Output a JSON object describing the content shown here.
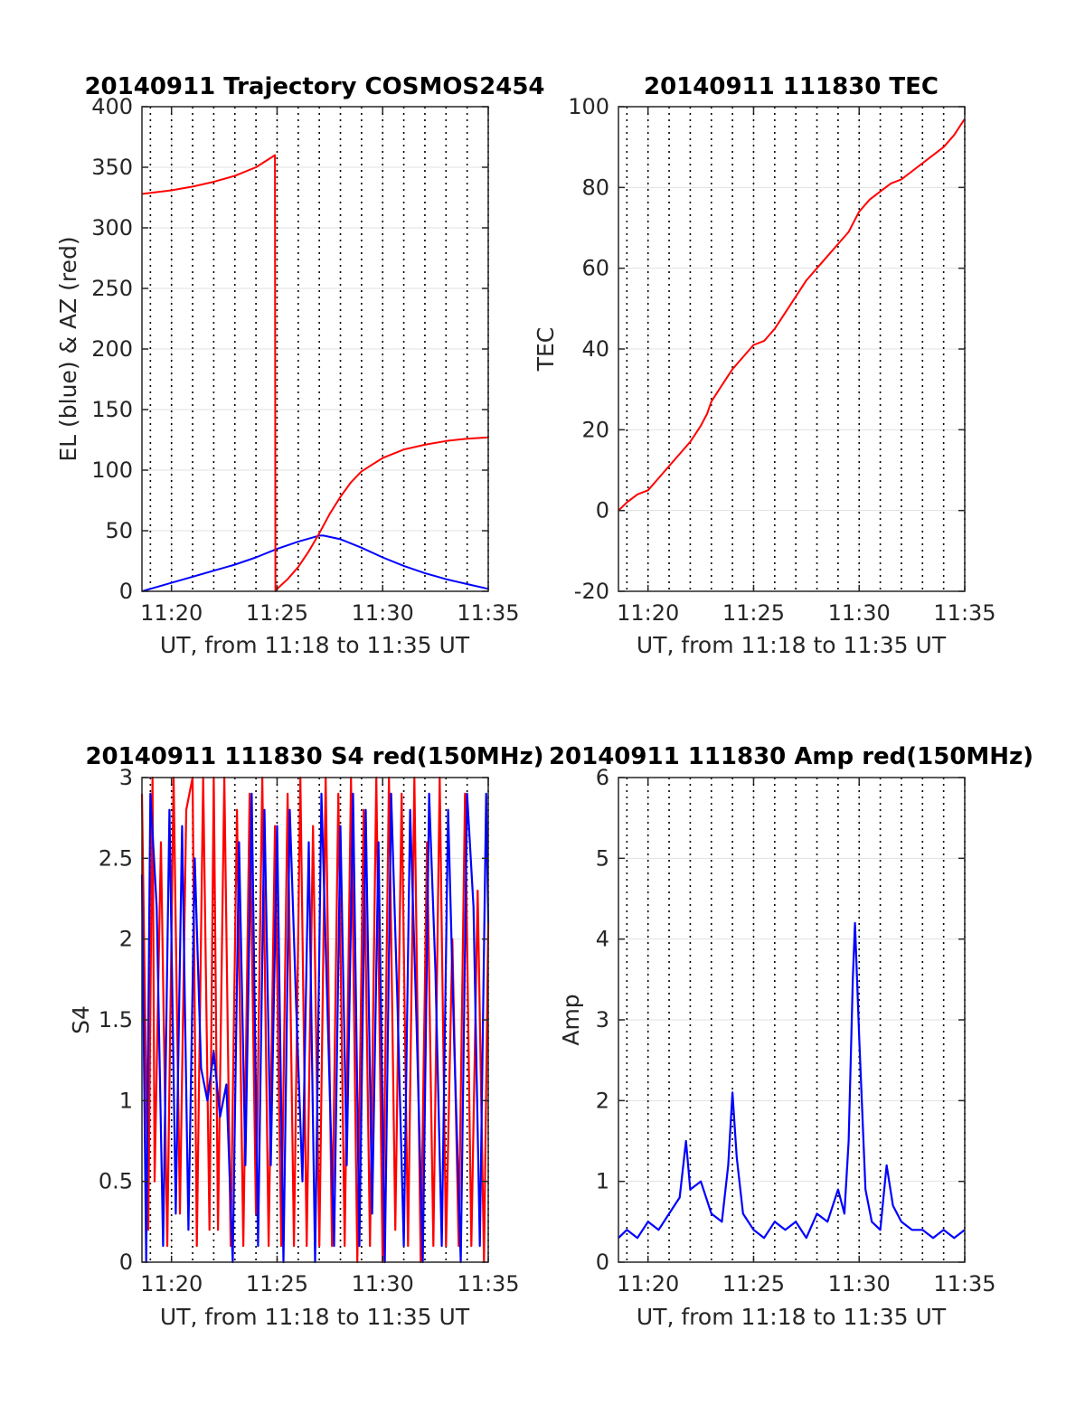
{
  "chart_data": [
    {
      "type": "line",
      "title": "20140911 Trajectory COSMOS2454",
      "xlabel": "UT, from 11:18 to 11:35 UT",
      "ylabel": "EL (blue) & AZ (red)",
      "xlim": [
        18.6,
        35.0
      ],
      "ylim": [
        0,
        400
      ],
      "xticks": [
        20,
        25,
        30,
        35
      ],
      "xtick_labels": [
        "11:20",
        "11:25",
        "11:30",
        "11:35"
      ],
      "yticks": [
        0,
        50,
        100,
        150,
        200,
        250,
        300,
        350,
        400
      ],
      "ytick_labels": [
        "0",
        "50",
        "100",
        "150",
        "200",
        "250",
        "300",
        "350",
        "400"
      ],
      "grid": true,
      "series": [
        {
          "color": "#0000ff",
          "x": [
            18.6,
            19.0,
            20.0,
            21.0,
            22.0,
            23.0,
            24.0,
            25.0,
            26.0,
            27.0,
            27.2,
            28.0,
            29.0,
            30.0,
            31.0,
            32.0,
            33.0,
            34.0,
            35.0
          ],
          "y": [
            0,
            2,
            7,
            12,
            17,
            22,
            28,
            35,
            41,
            46,
            46,
            43,
            36,
            28,
            21,
            15,
            10,
            6,
            2
          ]
        },
        {
          "color": "#ff0000",
          "x": [
            18.6,
            20.0,
            21.0,
            22.0,
            23.0,
            24.0,
            24.9,
            24.92,
            25.0,
            25.5,
            26.0,
            26.5,
            27.0,
            27.5,
            28.0,
            28.5,
            29.0,
            30.0,
            31.0,
            32.0,
            33.0,
            34.0,
            35.0
          ],
          "y": [
            328,
            331,
            334,
            338,
            343,
            350,
            360,
            0,
            2,
            10,
            20,
            33,
            48,
            64,
            78,
            90,
            99,
            110,
            117,
            121,
            124,
            126,
            127
          ]
        }
      ]
    },
    {
      "type": "line",
      "title": "20140911 111830 TEC",
      "xlabel": "UT, from 11:18 to 11:35 UT",
      "ylabel": "TEC",
      "xlim": [
        18.6,
        35.0
      ],
      "ylim": [
        -20,
        100
      ],
      "xticks": [
        20,
        25,
        30,
        35
      ],
      "xtick_labels": [
        "11:20",
        "11:25",
        "11:30",
        "11:35"
      ],
      "yticks": [
        -20,
        0,
        20,
        40,
        60,
        80,
        100
      ],
      "ytick_labels": [
        "-20",
        "0",
        "20",
        "40",
        "60",
        "80",
        "100"
      ],
      "grid": true,
      "series": [
        {
          "color": "#ff0000",
          "x": [
            18.6,
            19.0,
            19.5,
            20.0,
            20.5,
            21.0,
            21.5,
            22.0,
            22.5,
            22.8,
            23.0,
            23.5,
            24.0,
            24.5,
            25.0,
            25.5,
            26.0,
            26.5,
            27.0,
            27.5,
            28.0,
            28.5,
            29.0,
            29.5,
            30.0,
            30.5,
            31.0,
            31.5,
            32.0,
            32.5,
            33.0,
            33.5,
            34.0,
            34.5,
            35.0
          ],
          "y": [
            0,
            2,
            4,
            5,
            8,
            11,
            14,
            17,
            21,
            24,
            27,
            31,
            35,
            38,
            41,
            42,
            45,
            49,
            53,
            57,
            60,
            63,
            66,
            69,
            74,
            77,
            79,
            81,
            82,
            84,
            86,
            88,
            90,
            93,
            97
          ]
        }
      ]
    },
    {
      "type": "line",
      "title": "20140911 111830 S4 red(150MHz)",
      "xlabel": "UT, from 11:18 to 11:35 UT",
      "ylabel": "S4",
      "xlim": [
        18.6,
        35.0
      ],
      "ylim": [
        0,
        3
      ],
      "xticks": [
        20,
        25,
        30,
        35
      ],
      "xtick_labels": [
        "11:20",
        "11:25",
        "11:30",
        "11:35"
      ],
      "yticks": [
        0,
        0.5,
        1,
        1.5,
        2,
        2.5,
        3
      ],
      "ytick_labels": [
        "0",
        "0.5",
        "1",
        "1.5",
        "2",
        "2.5",
        "3"
      ],
      "grid": true,
      "series": [
        {
          "color": "#ff0000",
          "x": [
            18.6,
            18.9,
            19.1,
            19.2,
            19.5,
            19.8,
            20.1,
            20.4,
            20.7,
            21.0,
            21.2,
            21.5,
            21.8,
            22.0,
            22.2,
            22.5,
            22.8,
            23.1,
            23.4,
            23.7,
            24.0,
            24.3,
            24.6,
            24.9,
            25.2,
            25.5,
            25.8,
            26.1,
            26.4,
            26.7,
            27.0,
            27.3,
            27.6,
            27.9,
            28.2,
            28.5,
            28.8,
            29.1,
            29.4,
            29.7,
            30.0,
            30.3,
            30.6,
            30.9,
            31.2,
            31.5,
            31.8,
            32.1,
            32.4,
            32.7,
            33.0,
            33.3,
            33.6,
            33.9,
            34.2,
            34.5,
            34.8,
            35.0
          ],
          "y": [
            2.9,
            0.2,
            3.0,
            0.5,
            2.6,
            0.1,
            3.0,
            0.3,
            2.8,
            3.0,
            0.1,
            3.0,
            0.2,
            3.0,
            0.2,
            3.0,
            0.1,
            2.8,
            0.1,
            2.9,
            0.3,
            3.0,
            0.1,
            2.7,
            0.1,
            2.9,
            0.1,
            3.0,
            0.1,
            2.7,
            0.1,
            3.0,
            0.1,
            2.9,
            0.1,
            3.0,
            0.0,
            2.8,
            0.1,
            3.0,
            0.0,
            3.0,
            0.2,
            2.9,
            0.1,
            3.0,
            0.0,
            2.6,
            0.1,
            3.0,
            0.1,
            2.0,
            0.1,
            2.9,
            0.1,
            2.3,
            0.0,
            2.1
          ]
        },
        {
          "color": "#0000ff",
          "x": [
            18.6,
            18.8,
            19.0,
            19.3,
            19.6,
            19.9,
            20.2,
            20.5,
            20.8,
            21.1,
            21.4,
            21.7,
            22.0,
            22.3,
            22.6,
            22.9,
            23.2,
            23.5,
            23.8,
            24.1,
            24.4,
            24.7,
            25.0,
            25.3,
            25.6,
            25.9,
            26.2,
            26.5,
            26.8,
            27.1,
            27.4,
            27.7,
            28.0,
            28.3,
            28.6,
            28.9,
            29.2,
            29.5,
            29.8,
            30.1,
            30.4,
            30.7,
            31.0,
            31.3,
            31.6,
            31.9,
            32.2,
            32.5,
            32.8,
            33.1,
            33.4,
            33.7,
            34.0,
            34.3,
            34.6,
            34.9,
            35.0
          ],
          "y": [
            2.4,
            0.0,
            2.9,
            2.2,
            0.1,
            2.8,
            0.3,
            2.7,
            0.2,
            2.5,
            1.2,
            1.0,
            1.3,
            0.9,
            1.1,
            0.0,
            2.6,
            0.6,
            2.9,
            0.1,
            2.8,
            0.6,
            2.7,
            0.0,
            2.8,
            1.6,
            0.5,
            2.6,
            0.0,
            2.9,
            1.5,
            0.1,
            2.7,
            0.6,
            2.9,
            0.1,
            2.8,
            0.3,
            2.6,
            0.0,
            2.9,
            1.6,
            0.1,
            2.8,
            1.5,
            0.0,
            2.9,
            1.8,
            0.1,
            2.8,
            1.3,
            0.0,
            2.9,
            2.2,
            0.1,
            2.9,
            2.1
          ]
        }
      ]
    },
    {
      "type": "line",
      "title": "20140911 111830 Amp red(150MHz)",
      "xlabel": "UT, from 11:18 to 11:35 UT",
      "ylabel": "Amp",
      "xlim": [
        18.6,
        35.0
      ],
      "ylim": [
        0,
        6
      ],
      "xticks": [
        20,
        25,
        30,
        35
      ],
      "xtick_labels": [
        "11:20",
        "11:25",
        "11:30",
        "11:35"
      ],
      "yticks": [
        0,
        1,
        2,
        3,
        4,
        5,
        6
      ],
      "ytick_labels": [
        "0",
        "1",
        "2",
        "3",
        "4",
        "5",
        "6"
      ],
      "grid": true,
      "series": [
        {
          "color": "#0000ff",
          "x": [
            18.6,
            19.0,
            19.5,
            20.0,
            20.5,
            21.0,
            21.5,
            21.8,
            22.0,
            22.5,
            23.0,
            23.5,
            23.8,
            24.0,
            24.2,
            24.5,
            25.0,
            25.5,
            26.0,
            26.5,
            27.0,
            27.5,
            28.0,
            28.5,
            29.0,
            29.3,
            29.5,
            29.7,
            29.8,
            30.0,
            30.3,
            30.6,
            31.0,
            31.3,
            31.6,
            32.0,
            32.5,
            33.0,
            33.5,
            34.0,
            34.5,
            35.0
          ],
          "y": [
            0.3,
            0.4,
            0.3,
            0.5,
            0.4,
            0.6,
            0.8,
            1.5,
            0.9,
            1.0,
            0.6,
            0.5,
            1.2,
            2.1,
            1.3,
            0.6,
            0.4,
            0.3,
            0.5,
            0.4,
            0.5,
            0.3,
            0.6,
            0.5,
            0.9,
            0.6,
            1.5,
            3.5,
            4.2,
            2.8,
            0.9,
            0.5,
            0.4,
            1.2,
            0.7,
            0.5,
            0.4,
            0.4,
            0.3,
            0.4,
            0.3,
            0.4
          ]
        }
      ]
    }
  ]
}
